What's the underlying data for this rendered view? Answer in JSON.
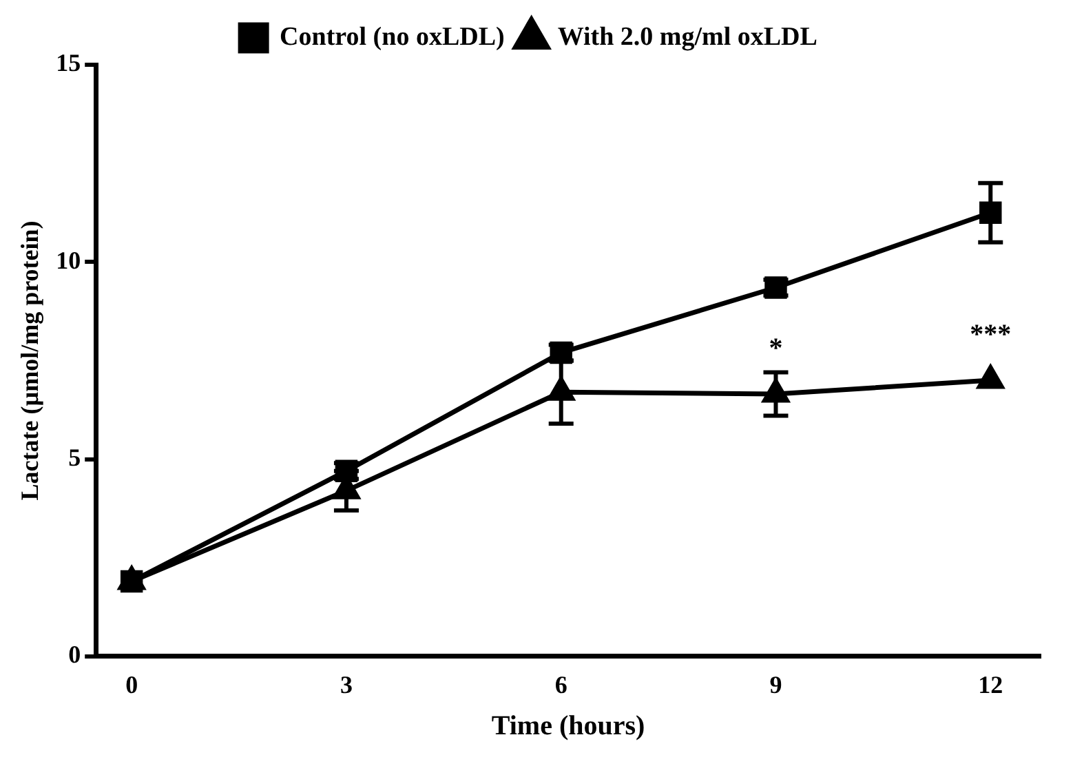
{
  "chart_data": {
    "type": "line",
    "xlabel": "Time (hours)",
    "ylabel": "Lactate (µmol/mg protein)",
    "x": [
      0,
      3,
      6,
      9,
      12
    ],
    "series": [
      {
        "name": "Control (no oxLDL)",
        "color": "#000000",
        "marker": "square",
        "values": [
          1.9,
          4.7,
          7.7,
          9.35,
          11.25
        ],
        "errors": [
          null,
          0.2,
          0.2,
          0.2,
          0.75
        ]
      },
      {
        "name": "With 2.0 mg/ml oxLDL",
        "color": "#000000",
        "marker": "triangle",
        "values": [
          1.9,
          4.2,
          6.7,
          6.65,
          7.0
        ],
        "errors": [
          null,
          0.5,
          0.8,
          0.55,
          null
        ]
      }
    ],
    "xlim": [
      -0.5,
      12.7
    ],
    "xticks": [
      0,
      3,
      6,
      9,
      12
    ],
    "ylim": [
      0,
      15
    ],
    "yticks": [
      0,
      5,
      10,
      15
    ],
    "grid": false,
    "legend": "top",
    "annotations": [
      {
        "text": "*",
        "x": 9,
        "y": 6.65
      },
      {
        "text": "***",
        "x": 12,
        "y": 7.0
      }
    ]
  }
}
